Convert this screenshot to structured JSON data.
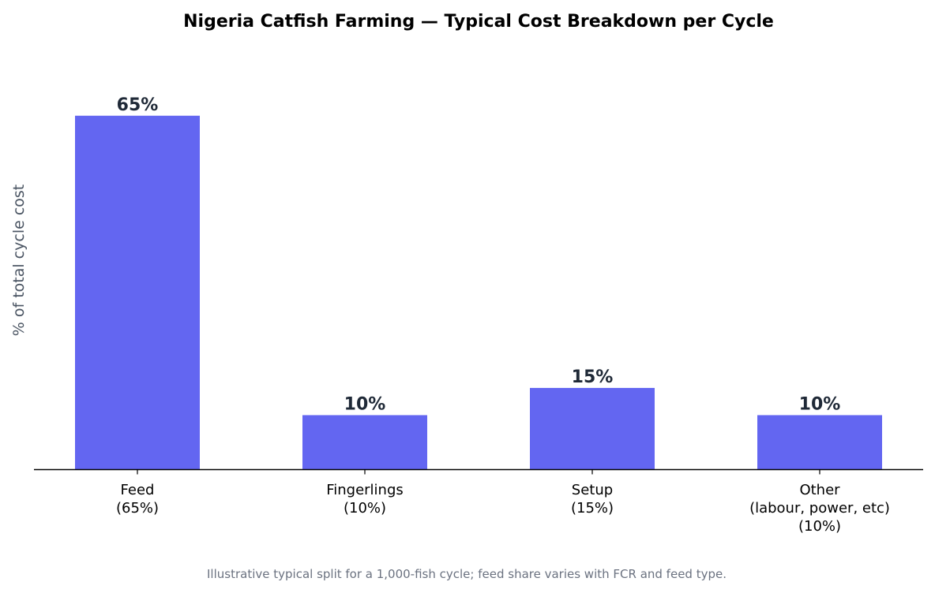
{
  "chart_data": {
    "type": "bar",
    "title": "Nigeria Catfish Farming — Typical Cost Breakdown per Cycle",
    "xlabel": "",
    "ylabel": "% of total cycle cost",
    "categories": [
      [
        "Feed",
        "(65%)"
      ],
      [
        "Fingerlings",
        "(10%)"
      ],
      [
        "Setup",
        "(15%)"
      ],
      [
        "Other",
        "(labour, power, etc)",
        "(10%)"
      ]
    ],
    "values": [
      65,
      10,
      15,
      10
    ],
    "value_labels": [
      "65%",
      "10%",
      "15%",
      "10%"
    ],
    "ylim": [
      0,
      78
    ],
    "grid": false,
    "legend": "none",
    "bar_color": "#6366f1",
    "footnote": "Illustrative typical split for a 1,000-fish cycle; feed share varies with FCR and feed type."
  }
}
